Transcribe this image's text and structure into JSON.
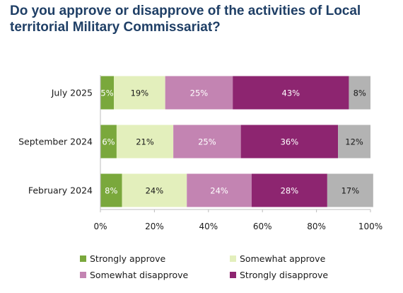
{
  "colors": {
    "title": "#1f3f66",
    "axis": "#bdbdbd",
    "strongly_approve": "#7aa83c",
    "somewhat_approve": "#e3efbc",
    "somewhat_disapprove": "#c384b2",
    "strongly_disapprove": "#8d2570",
    "dont_know": "#b3b3b3"
  },
  "chart_data": {
    "type": "bar",
    "orientation": "horizontal",
    "stacked": true,
    "title": "Do you approve or disapprove of the activities of Local territorial Military Commissariat?",
    "categories": [
      "July 2025",
      "September 2024",
      "February 2024"
    ],
    "series": [
      {
        "name": "Strongly approve",
        "values": [
          5,
          6,
          8
        ],
        "color": "#7aa83c",
        "label_color": "#ffffff"
      },
      {
        "name": "Somewhat approve",
        "values": [
          19,
          21,
          24
        ],
        "color": "#e3efbc",
        "label_color": "#1a1a1a"
      },
      {
        "name": "Somewhat disapprove",
        "values": [
          25,
          25,
          24
        ],
        "color": "#c384b2",
        "label_color": "#ffffff"
      },
      {
        "name": "Strongly disapprove",
        "values": [
          43,
          36,
          28
        ],
        "color": "#8d2570",
        "label_color": "#ffffff"
      },
      {
        "values": [
          8,
          12,
          17
        ],
        "color": "#b3b3b3",
        "label_color": "#1a1a1a",
        "in_legend": false
      }
    ],
    "value_suffix": "%",
    "xlim": [
      0,
      100
    ],
    "xticks": [
      0,
      20,
      40,
      60,
      80,
      100
    ],
    "xtick_labels": [
      "0%",
      "20%",
      "40%",
      "60%",
      "80%",
      "100%"
    ],
    "legend": {
      "placement": "bottom",
      "columns": 2,
      "entries": [
        "Strongly approve",
        "Somewhat approve",
        "Somewhat disapprove",
        "Strongly disapprove"
      ]
    },
    "grid": false
  }
}
